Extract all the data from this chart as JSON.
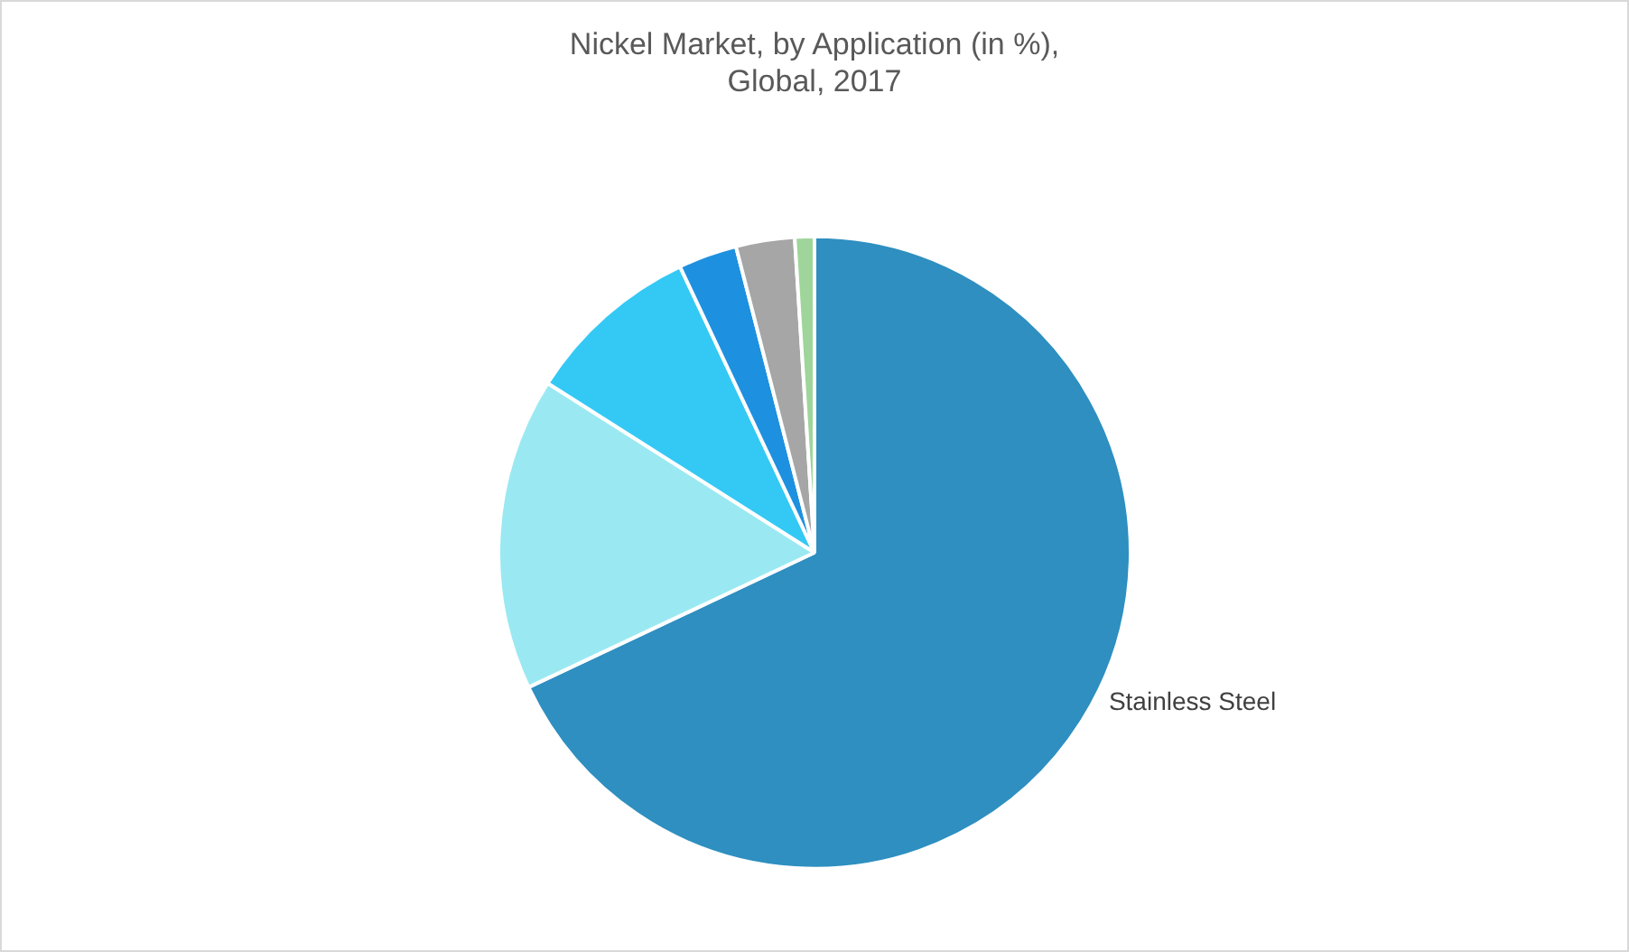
{
  "chart_data": {
    "type": "pie",
    "title": "Nickel Market, by Application (in %),\nGlobal, 2017",
    "categories": [
      "Stainless Steel",
      null,
      null,
      null,
      null,
      null
    ],
    "values": [
      68,
      16,
      9,
      3,
      3,
      1
    ],
    "colors": [
      "#2e8fc0",
      "#9ae9f2",
      "#34c9f5",
      "#1e90e0",
      "#a6a6a6",
      "#9fd59a"
    ],
    "legend": false
  }
}
